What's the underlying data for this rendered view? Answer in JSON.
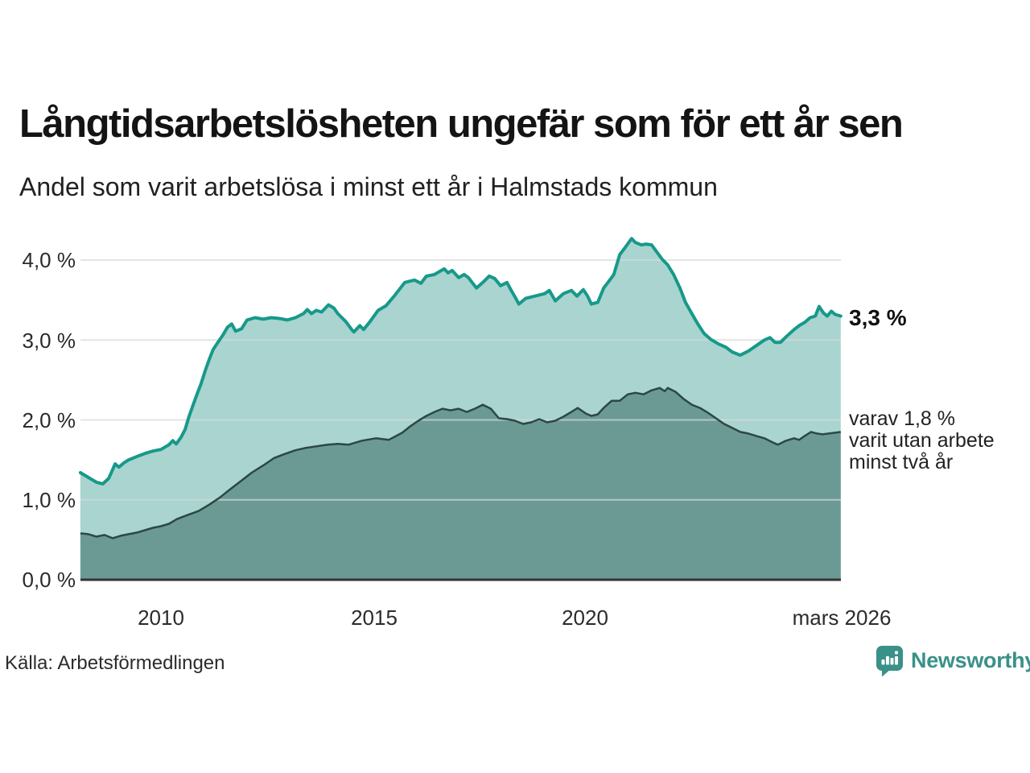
{
  "header": {
    "title": "Långtidsarbetslösheten ungefär som för ett år sen",
    "subtitle": "Andel som varit arbetslösa i minst ett år i Halmstads kommun"
  },
  "chart_data": {
    "type": "area",
    "title": "Långtidsarbetslösheten ungefär som för ett år sen",
    "subtitle": "Andel som varit arbetslösa i minst ett år i Halmstads kommun",
    "unit": "%",
    "grid": "horizontal",
    "xlim": [
      2008.1,
      2026.03
    ],
    "ylim": [
      0,
      4.3
    ],
    "y_ticks": [
      {
        "label": "4,0 %",
        "value": 4
      },
      {
        "label": "3,0 %",
        "value": 3
      },
      {
        "label": "2,0 %",
        "value": 2
      },
      {
        "label": "1,0 %",
        "value": 1
      },
      {
        "label": "0,0 %",
        "value": 0
      }
    ],
    "x_ticks": [
      {
        "label": "2010",
        "year": 2010
      },
      {
        "label": "2015",
        "year": 2015
      },
      {
        "label": "2020",
        "year": 2020
      },
      {
        "label": "mars 2026",
        "year": 2026.03
      }
    ],
    "colors": {
      "line_one_year": "#17998a",
      "fill_one_year": "#a9d4cf",
      "line_two_years": "#2b4844",
      "fill_two_years": "#6b9a95",
      "gridline": "#d9d9d9",
      "axis": "#333333"
    },
    "series": [
      {
        "name": "arbetslösa minst ett år",
        "last_value": 3.3,
        "points": [
          [
            2008.1,
            1.34
          ],
          [
            2008.29,
            1.28
          ],
          [
            2008.48,
            1.22
          ],
          [
            2008.63,
            1.2
          ],
          [
            2008.77,
            1.27
          ],
          [
            2008.92,
            1.45
          ],
          [
            2009.01,
            1.41
          ],
          [
            2009.12,
            1.46
          ],
          [
            2009.24,
            1.5
          ],
          [
            2009.47,
            1.55
          ],
          [
            2009.62,
            1.58
          ],
          [
            2009.81,
            1.61
          ],
          [
            2010.0,
            1.63
          ],
          [
            2010.19,
            1.69
          ],
          [
            2010.28,
            1.74
          ],
          [
            2010.36,
            1.7
          ],
          [
            2010.47,
            1.78
          ],
          [
            2010.57,
            1.88
          ],
          [
            2010.66,
            2.04
          ],
          [
            2010.76,
            2.19
          ],
          [
            2010.85,
            2.32
          ],
          [
            2010.95,
            2.46
          ],
          [
            2011.04,
            2.61
          ],
          [
            2011.14,
            2.76
          ],
          [
            2011.23,
            2.88
          ],
          [
            2011.33,
            2.96
          ],
          [
            2011.46,
            3.06
          ],
          [
            2011.57,
            3.16
          ],
          [
            2011.67,
            3.2
          ],
          [
            2011.76,
            3.11
          ],
          [
            2011.9,
            3.14
          ],
          [
            2012.03,
            3.25
          ],
          [
            2012.22,
            3.28
          ],
          [
            2012.41,
            3.26
          ],
          [
            2012.6,
            3.28
          ],
          [
            2012.79,
            3.27
          ],
          [
            2012.98,
            3.25
          ],
          [
            2013.17,
            3.28
          ],
          [
            2013.36,
            3.33
          ],
          [
            2013.45,
            3.38
          ],
          [
            2013.55,
            3.33
          ],
          [
            2013.66,
            3.37
          ],
          [
            2013.79,
            3.35
          ],
          [
            2013.95,
            3.44
          ],
          [
            2014.08,
            3.4
          ],
          [
            2014.17,
            3.33
          ],
          [
            2014.36,
            3.23
          ],
          [
            2014.5,
            3.13
          ],
          [
            2014.55,
            3.1
          ],
          [
            2014.69,
            3.18
          ],
          [
            2014.78,
            3.13
          ],
          [
            2014.93,
            3.23
          ],
          [
            2015.12,
            3.37
          ],
          [
            2015.31,
            3.43
          ],
          [
            2015.5,
            3.55
          ],
          [
            2015.75,
            3.72
          ],
          [
            2015.98,
            3.75
          ],
          [
            2016.13,
            3.71
          ],
          [
            2016.26,
            3.8
          ],
          [
            2016.45,
            3.82
          ],
          [
            2016.68,
            3.89
          ],
          [
            2016.77,
            3.84
          ],
          [
            2016.87,
            3.87
          ],
          [
            2017.02,
            3.78
          ],
          [
            2017.15,
            3.82
          ],
          [
            2017.25,
            3.78
          ],
          [
            2017.44,
            3.65
          ],
          [
            2017.59,
            3.72
          ],
          [
            2017.74,
            3.8
          ],
          [
            2017.87,
            3.77
          ],
          [
            2018.01,
            3.68
          ],
          [
            2018.16,
            3.72
          ],
          [
            2018.25,
            3.63
          ],
          [
            2018.35,
            3.54
          ],
          [
            2018.44,
            3.45
          ],
          [
            2018.6,
            3.52
          ],
          [
            2018.82,
            3.55
          ],
          [
            2019.05,
            3.58
          ],
          [
            2019.16,
            3.62
          ],
          [
            2019.3,
            3.49
          ],
          [
            2019.49,
            3.58
          ],
          [
            2019.68,
            3.62
          ],
          [
            2019.81,
            3.55
          ],
          [
            2019.96,
            3.63
          ],
          [
            2020.06,
            3.55
          ],
          [
            2020.15,
            3.45
          ],
          [
            2020.3,
            3.47
          ],
          [
            2020.44,
            3.65
          ],
          [
            2020.57,
            3.74
          ],
          [
            2020.68,
            3.82
          ],
          [
            2020.82,
            4.07
          ],
          [
            2020.95,
            4.16
          ],
          [
            2021.1,
            4.27
          ],
          [
            2021.19,
            4.22
          ],
          [
            2021.33,
            4.19
          ],
          [
            2021.44,
            4.2
          ],
          [
            2021.57,
            4.19
          ],
          [
            2021.71,
            4.09
          ],
          [
            2021.82,
            4.01
          ],
          [
            2021.95,
            3.94
          ],
          [
            2022.09,
            3.82
          ],
          [
            2022.24,
            3.65
          ],
          [
            2022.37,
            3.47
          ],
          [
            2022.52,
            3.33
          ],
          [
            2022.66,
            3.2
          ],
          [
            2022.81,
            3.08
          ],
          [
            2022.96,
            3.01
          ],
          [
            2023.15,
            2.95
          ],
          [
            2023.32,
            2.91
          ],
          [
            2023.47,
            2.85
          ],
          [
            2023.66,
            2.81
          ],
          [
            2023.85,
            2.86
          ],
          [
            2024.04,
            2.93
          ],
          [
            2024.23,
            3.0
          ],
          [
            2024.36,
            3.03
          ],
          [
            2024.48,
            2.97
          ],
          [
            2024.61,
            2.97
          ],
          [
            2024.76,
            3.05
          ],
          [
            2024.93,
            3.13
          ],
          [
            2025.05,
            3.18
          ],
          [
            2025.18,
            3.22
          ],
          [
            2025.31,
            3.28
          ],
          [
            2025.43,
            3.3
          ],
          [
            2025.52,
            3.42
          ],
          [
            2025.62,
            3.34
          ],
          [
            2025.71,
            3.3
          ],
          [
            2025.81,
            3.36
          ],
          [
            2025.9,
            3.32
          ],
          [
            2026.03,
            3.3
          ]
        ]
      },
      {
        "name": "varav arbetslösa minst två år",
        "last_value": 1.8,
        "points": [
          [
            2008.1,
            0.58
          ],
          [
            2008.29,
            0.57
          ],
          [
            2008.48,
            0.54
          ],
          [
            2008.67,
            0.56
          ],
          [
            2008.86,
            0.52
          ],
          [
            2009.05,
            0.55
          ],
          [
            2009.24,
            0.57
          ],
          [
            2009.43,
            0.59
          ],
          [
            2009.62,
            0.62
          ],
          [
            2009.81,
            0.65
          ],
          [
            2010.0,
            0.67
          ],
          [
            2010.19,
            0.7
          ],
          [
            2010.38,
            0.76
          ],
          [
            2010.63,
            0.81
          ],
          [
            2010.89,
            0.86
          ],
          [
            2011.14,
            0.94
          ],
          [
            2011.39,
            1.03
          ],
          [
            2011.65,
            1.14
          ],
          [
            2011.9,
            1.24
          ],
          [
            2012.14,
            1.34
          ],
          [
            2012.41,
            1.43
          ],
          [
            2012.66,
            1.52
          ],
          [
            2012.9,
            1.57
          ],
          [
            2013.17,
            1.62
          ],
          [
            2013.42,
            1.65
          ],
          [
            2013.66,
            1.67
          ],
          [
            2013.93,
            1.69
          ],
          [
            2014.17,
            1.7
          ],
          [
            2014.42,
            1.69
          ],
          [
            2014.74,
            1.74
          ],
          [
            2015.07,
            1.77
          ],
          [
            2015.37,
            1.75
          ],
          [
            2015.69,
            1.84
          ],
          [
            2015.88,
            1.92
          ],
          [
            2016.07,
            1.99
          ],
          [
            2016.26,
            2.05
          ],
          [
            2016.45,
            2.1
          ],
          [
            2016.64,
            2.14
          ],
          [
            2016.83,
            2.12
          ],
          [
            2017.02,
            2.14
          ],
          [
            2017.21,
            2.1
          ],
          [
            2017.4,
            2.14
          ],
          [
            2017.59,
            2.19
          ],
          [
            2017.78,
            2.14
          ],
          [
            2017.97,
            2.02
          ],
          [
            2018.16,
            2.01
          ],
          [
            2018.35,
            1.99
          ],
          [
            2018.54,
            1.95
          ],
          [
            2018.73,
            1.97
          ],
          [
            2018.92,
            2.01
          ],
          [
            2019.11,
            1.97
          ],
          [
            2019.3,
            1.99
          ],
          [
            2019.49,
            2.04
          ],
          [
            2019.68,
            2.1
          ],
          [
            2019.83,
            2.15
          ],
          [
            2020.02,
            2.08
          ],
          [
            2020.15,
            2.05
          ],
          [
            2020.3,
            2.07
          ],
          [
            2020.44,
            2.15
          ],
          [
            2020.63,
            2.24
          ],
          [
            2020.82,
            2.24
          ],
          [
            2021.01,
            2.32
          ],
          [
            2021.19,
            2.34
          ],
          [
            2021.38,
            2.32
          ],
          [
            2021.57,
            2.37
          ],
          [
            2021.76,
            2.4
          ],
          [
            2021.88,
            2.36
          ],
          [
            2021.95,
            2.4
          ],
          [
            2022.14,
            2.35
          ],
          [
            2022.33,
            2.26
          ],
          [
            2022.52,
            2.19
          ],
          [
            2022.71,
            2.15
          ],
          [
            2022.9,
            2.09
          ],
          [
            2023.09,
            2.02
          ],
          [
            2023.28,
            1.95
          ],
          [
            2023.47,
            1.9
          ],
          [
            2023.66,
            1.85
          ],
          [
            2023.85,
            1.83
          ],
          [
            2024.04,
            1.8
          ],
          [
            2024.23,
            1.77
          ],
          [
            2024.42,
            1.72
          ],
          [
            2024.55,
            1.69
          ],
          [
            2024.74,
            1.74
          ],
          [
            2024.93,
            1.77
          ],
          [
            2025.05,
            1.75
          ],
          [
            2025.18,
            1.8
          ],
          [
            2025.33,
            1.85
          ],
          [
            2025.47,
            1.83
          ],
          [
            2025.6,
            1.82
          ],
          [
            2025.75,
            1.83
          ],
          [
            2025.9,
            1.84
          ],
          [
            2026.03,
            1.85
          ]
        ]
      }
    ],
    "annotations": {
      "total": {
        "text": "3,3 %",
        "value": 3.3
      },
      "breakdown": {
        "line1": "varav 1,8 %",
        "line2": "varit utan arbete",
        "line3": "minst två år",
        "value": 1.8
      }
    },
    "legend_position": "right-annotations"
  },
  "footer": {
    "source": "Källa: Arbetsförmedlingen",
    "brand": "Newsworthy"
  }
}
